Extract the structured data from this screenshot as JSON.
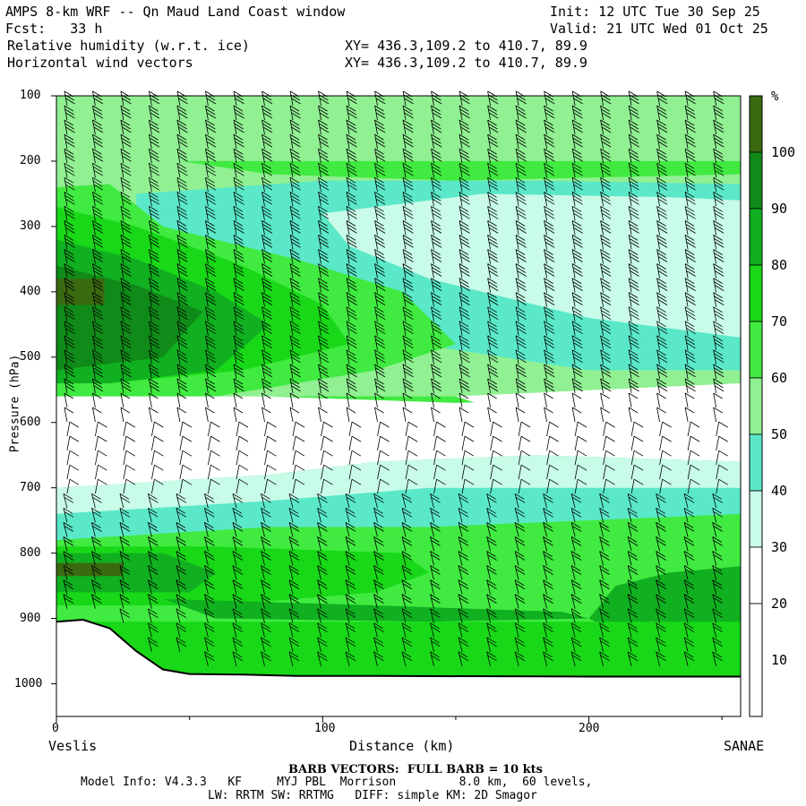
{
  "header": {
    "title": "AMPS 8-km WRF -- Qn Maud Land Coast window",
    "init": "Init: 12 UTC Tue 30 Sep 25",
    "fcst": "Fcst:   33 h",
    "valid": "Valid: 21 UTC Wed 01 Oct 25",
    "field1": "Relative humidity (w.r.t. ice)",
    "field1_xy": "XY= 436.3,109.2 to 410.7, 89.9",
    "field2": "Horizontal wind vectors",
    "field2_xy": "XY= 436.3,109.2 to 410.7, 89.9"
  },
  "footer": {
    "barb": "BARB VECTORS:  FULL BARB = 10 kts",
    "model1": "Model Info: V4.3.3   KF     MYJ PBL  Morrison         8.0 km,  60 levels,",
    "model2": "LW: RRTM SW: RRTMG   DIFF: simple KM: 2D Smagor"
  },
  "colors": {
    "white": "#ffffff",
    "c30_40": "#c8fbe8",
    "c40_50": "#5ae8c8",
    "c50_60": "#90f092",
    "c60_70": "#40ea40",
    "c70_80": "#18d818",
    "c80_90": "#10b020",
    "c90_100": "#108a18",
    "c100": "#3a6a10",
    "terrain_line": "#000000"
  },
  "chart_data": {
    "type": "heatmap",
    "title": "Relative humidity (w.r.t. ice)",
    "xlabel": "Distance (km)",
    "ylabel": "Pressure (hPa)",
    "x_left_label": "Veslis",
    "x_right_label": "SANAE",
    "xlim": [
      0,
      257
    ],
    "ylim": [
      1050,
      100
    ],
    "xticks": [
      "0",
      "100",
      "200"
    ],
    "yticks": [
      "100",
      "200",
      "300",
      "400",
      "500",
      "600",
      "700",
      "800",
      "900",
      "1000"
    ],
    "colorbar": {
      "unit": "%",
      "levels": [
        "10",
        "20",
        "30",
        "40",
        "50",
        "60",
        "70",
        "80",
        "90",
        "100"
      ]
    },
    "terrain_profile": {
      "x_km": [
        0,
        10,
        20,
        30,
        40,
        50,
        70,
        90,
        120,
        200,
        257
      ],
      "p_hpa": [
        905,
        902,
        915,
        950,
        978,
        985,
        986,
        988,
        988,
        989,
        989
      ]
    },
    "rh_fields": [
      {
        "p": 150,
        "rh": [
          60,
          70,
          60,
          60,
          60,
          55,
          55,
          50,
          50,
          50,
          45,
          45
        ]
      },
      {
        "p": 300,
        "rh": [
          80,
          70,
          60,
          55,
          50,
          45,
          40,
          35,
          35,
          35,
          35,
          45
        ]
      },
      {
        "p": 450,
        "rh": [
          95,
          90,
          85,
          75,
          65,
          60,
          55,
          50,
          45,
          40,
          40,
          40
        ]
      },
      {
        "p": 640,
        "rh": [
          25,
          25,
          25,
          25,
          25,
          25,
          25,
          25,
          25,
          25,
          25,
          25
        ]
      },
      {
        "p": 820,
        "rh": [
          90,
          85,
          80,
          75,
          75,
          70,
          70,
          70,
          70,
          70,
          80,
          85
        ]
      }
    ]
  }
}
